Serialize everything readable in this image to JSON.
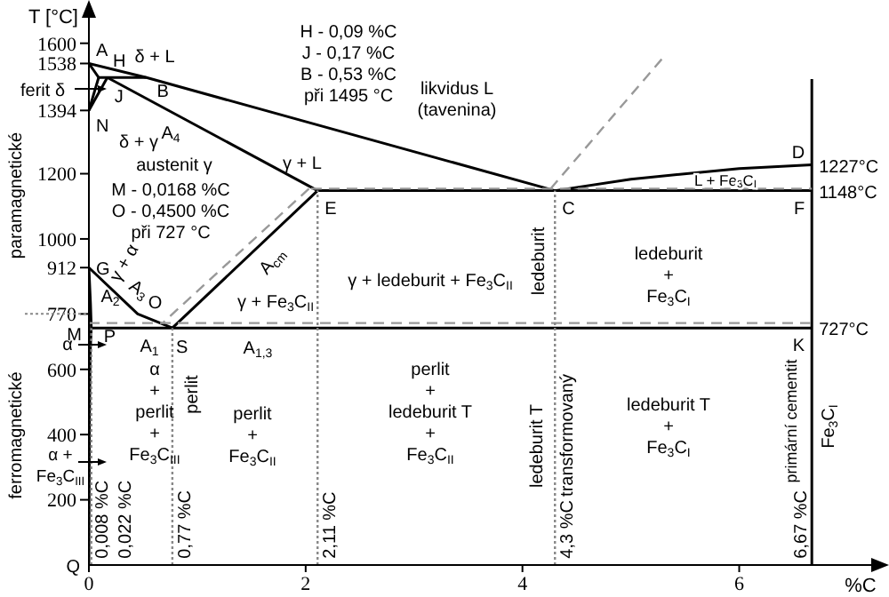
{
  "chart_data": {
    "type": "line",
    "xlabel": "%C",
    "ylabel": "T [°C]",
    "xlim": [
      0,
      7.3
    ],
    "ylim": [
      0,
      1700
    ],
    "xticks": [
      0,
      2,
      4,
      6
    ],
    "yticks": [
      200,
      400,
      600,
      770,
      912,
      1000,
      1200,
      1394,
      1538,
      1600
    ],
    "marker": "none",
    "series": [
      {
        "color": "#000000",
        "line_style": "solid",
        "x": [
          0,
          0.53,
          4.3,
          5,
          6,
          6.67
        ],
        "values": [
          1538,
          1495,
          1148,
          1183,
          1216,
          1227
        ]
      },
      {
        "color": "#000000",
        "line_style": "solid",
        "x": [
          0,
          0.09
        ],
        "values": [
          1538,
          1495
        ]
      },
      {
        "color": "#000000",
        "line_style": "solid",
        "x": [
          0.09,
          0.53
        ],
        "values": [
          1495,
          1495
        ]
      },
      {
        "color": "#000000",
        "line_style": "solid",
        "x": [
          0.09,
          0
        ],
        "values": [
          1495,
          1394
        ]
      },
      {
        "color": "#000000",
        "line_style": "solid",
        "x": [
          0.17,
          0
        ],
        "values": [
          1495,
          1394
        ]
      },
      {
        "color": "#000000",
        "line_style": "solid",
        "x": [
          0.17,
          2.11
        ],
        "values": [
          1495,
          1148
        ]
      },
      {
        "color": "#000000",
        "line_style": "solid",
        "x": [
          2.11,
          6.67
        ],
        "values": [
          1148,
          1148
        ]
      },
      {
        "color": "#000000",
        "line_style": "solid",
        "x": [
          6.67,
          6.67
        ],
        "values": [
          0,
          1490
        ]
      },
      {
        "color": "#000000",
        "line_style": "solid",
        "x": [
          0,
          0.45,
          0.77
        ],
        "values": [
          912,
          770,
          727
        ]
      },
      {
        "color": "#000000",
        "line_style": "solid",
        "x": [
          0,
          0.015,
          0.022,
          0.012,
          0.005,
          0
        ],
        "values": [
          912,
          800,
          727,
          650,
          450,
          0
        ]
      },
      {
        "color": "#000000",
        "line_style": "solid",
        "x": [
          2.11,
          0.77
        ],
        "values": [
          1148,
          727
        ]
      },
      {
        "color": "#000000",
        "line_style": "solid",
        "x": [
          0.022,
          6.67
        ],
        "values": [
          727,
          727
        ]
      },
      {
        "color": "#999999",
        "line_style": "dashed",
        "x": [
          2.05,
          6.67
        ],
        "values": [
          1154,
          1154
        ]
      },
      {
        "color": "#999999",
        "line_style": "dashed",
        "x": [
          0,
          6.67
        ],
        "values": [
          742,
          742
        ]
      },
      {
        "color": "#999999",
        "line_style": "dashed",
        "x": [
          4.26,
          5.3
        ],
        "values": [
          1154,
          1557
        ]
      },
      {
        "color": "#999999",
        "line_style": "dashed",
        "x": [
          2.03,
          0.68
        ],
        "values": [
          1154,
          742
        ]
      },
      {
        "color": "#888888",
        "line_style": "dotted",
        "x": [
          0.022,
          0.022
        ],
        "values": [
          0,
          727
        ]
      },
      {
        "color": "#888888",
        "line_style": "dotted",
        "x": [
          0.77,
          0.77
        ],
        "values": [
          0,
          727
        ]
      },
      {
        "color": "#888888",
        "line_style": "dotted",
        "x": [
          2.11,
          2.11
        ],
        "values": [
          0,
          1148
        ]
      },
      {
        "color": "#888888",
        "line_style": "dotted",
        "x": [
          4.3,
          4.3
        ],
        "values": [
          0,
          1148
        ]
      }
    ],
    "annotations": [
      {
        "text": "A",
        "x": 0,
        "y": 1538
      },
      {
        "text": "H",
        "x": 0.09,
        "y": 1495
      },
      {
        "text": "B",
        "x": 0.53,
        "y": 1495
      },
      {
        "text": "J",
        "x": 0.17,
        "y": 1495
      },
      {
        "text": "N",
        "x": 0,
        "y": 1394
      },
      {
        "text": "G",
        "x": 0,
        "y": 912
      },
      {
        "text": "M",
        "x": 0,
        "y": 770
      },
      {
        "text": "O",
        "x": 0.45,
        "y": 770
      },
      {
        "text": "P",
        "x": 0.022,
        "y": 727
      },
      {
        "text": "S",
        "x": 0.77,
        "y": 727
      },
      {
        "text": "Q",
        "x": 0,
        "y": 0
      },
      {
        "text": "E",
        "x": 2.11,
        "y": 1148
      },
      {
        "text": "C",
        "x": 4.3,
        "y": 1148
      },
      {
        "text": "D",
        "x": 6.67,
        "y": 1227
      },
      {
        "text": "F",
        "x": 6.67,
        "y": 1148
      },
      {
        "text": "K",
        "x": 6.67,
        "y": 727
      },
      {
        "text": "1227°C",
        "x": 6.67,
        "y": 1227
      },
      {
        "text": "1148°C",
        "x": 6.67,
        "y": 1148
      },
      {
        "text": "727°C",
        "x": 6.67,
        "y": 727
      },
      {
        "text": "0,008 %C",
        "x": 0.008,
        "y": 20
      },
      {
        "text": "0,022 %C",
        "x": 0.022,
        "y": 20
      },
      {
        "text": "0,77 %C",
        "x": 0.77,
        "y": 20
      },
      {
        "text": "2,11 %C",
        "x": 2.11,
        "y": 20
      },
      {
        "text": "4,3 %C",
        "x": 4.3,
        "y": 20
      },
      {
        "text": "6,67 %C",
        "x": 6.67,
        "y": 20
      },
      "δ + L",
      "A$_{4}$",
      "δ + γ",
      "austenit γ",
      "γ + L",
      "likvidus L\n(tavenina)",
      "γ + α",
      "A$_{3}$",
      "A$_{2}$",
      "A$_{cm}$",
      "γ + Fe$_{3}$C$_{II}$",
      "γ + ledeburit + Fe$_{3}$C$_{II}$",
      "ledeburit",
      "ledeburit\n+\nFe$_{3}$C$_{I}$",
      "L + Fe$_{3}$C$_{I}$",
      "A$_{1}$",
      "A$_{1,3}$",
      "α\n+\nperlit\n+\nFe$_{3}$C$_{III}$",
      "perlit",
      "perlit\n+\nFe$_{3}$C$_{II}$",
      "perlit\n+\nledeburit T\n+\nFe$_{3}$C$_{II}$",
      "ledeburit T",
      "transformovaný",
      "ledeburit T\n+\nFe$_{3}$C$_{I}$",
      "primární cementit",
      "Fe$_{3}$C$_{I}$",
      "H - 0,09 %C",
      "J - 0,17 %C",
      "B - 0,53 %C",
      "při 1495 °C",
      "M - 0,0168 %C",
      "O - 0,4500 %C",
      "při 727 °C",
      "ferit δ",
      "α",
      "α +\nFe$_{3}$C$_{III}$",
      "paramagnetické",
      "ferromagnetické"
    ]
  }
}
